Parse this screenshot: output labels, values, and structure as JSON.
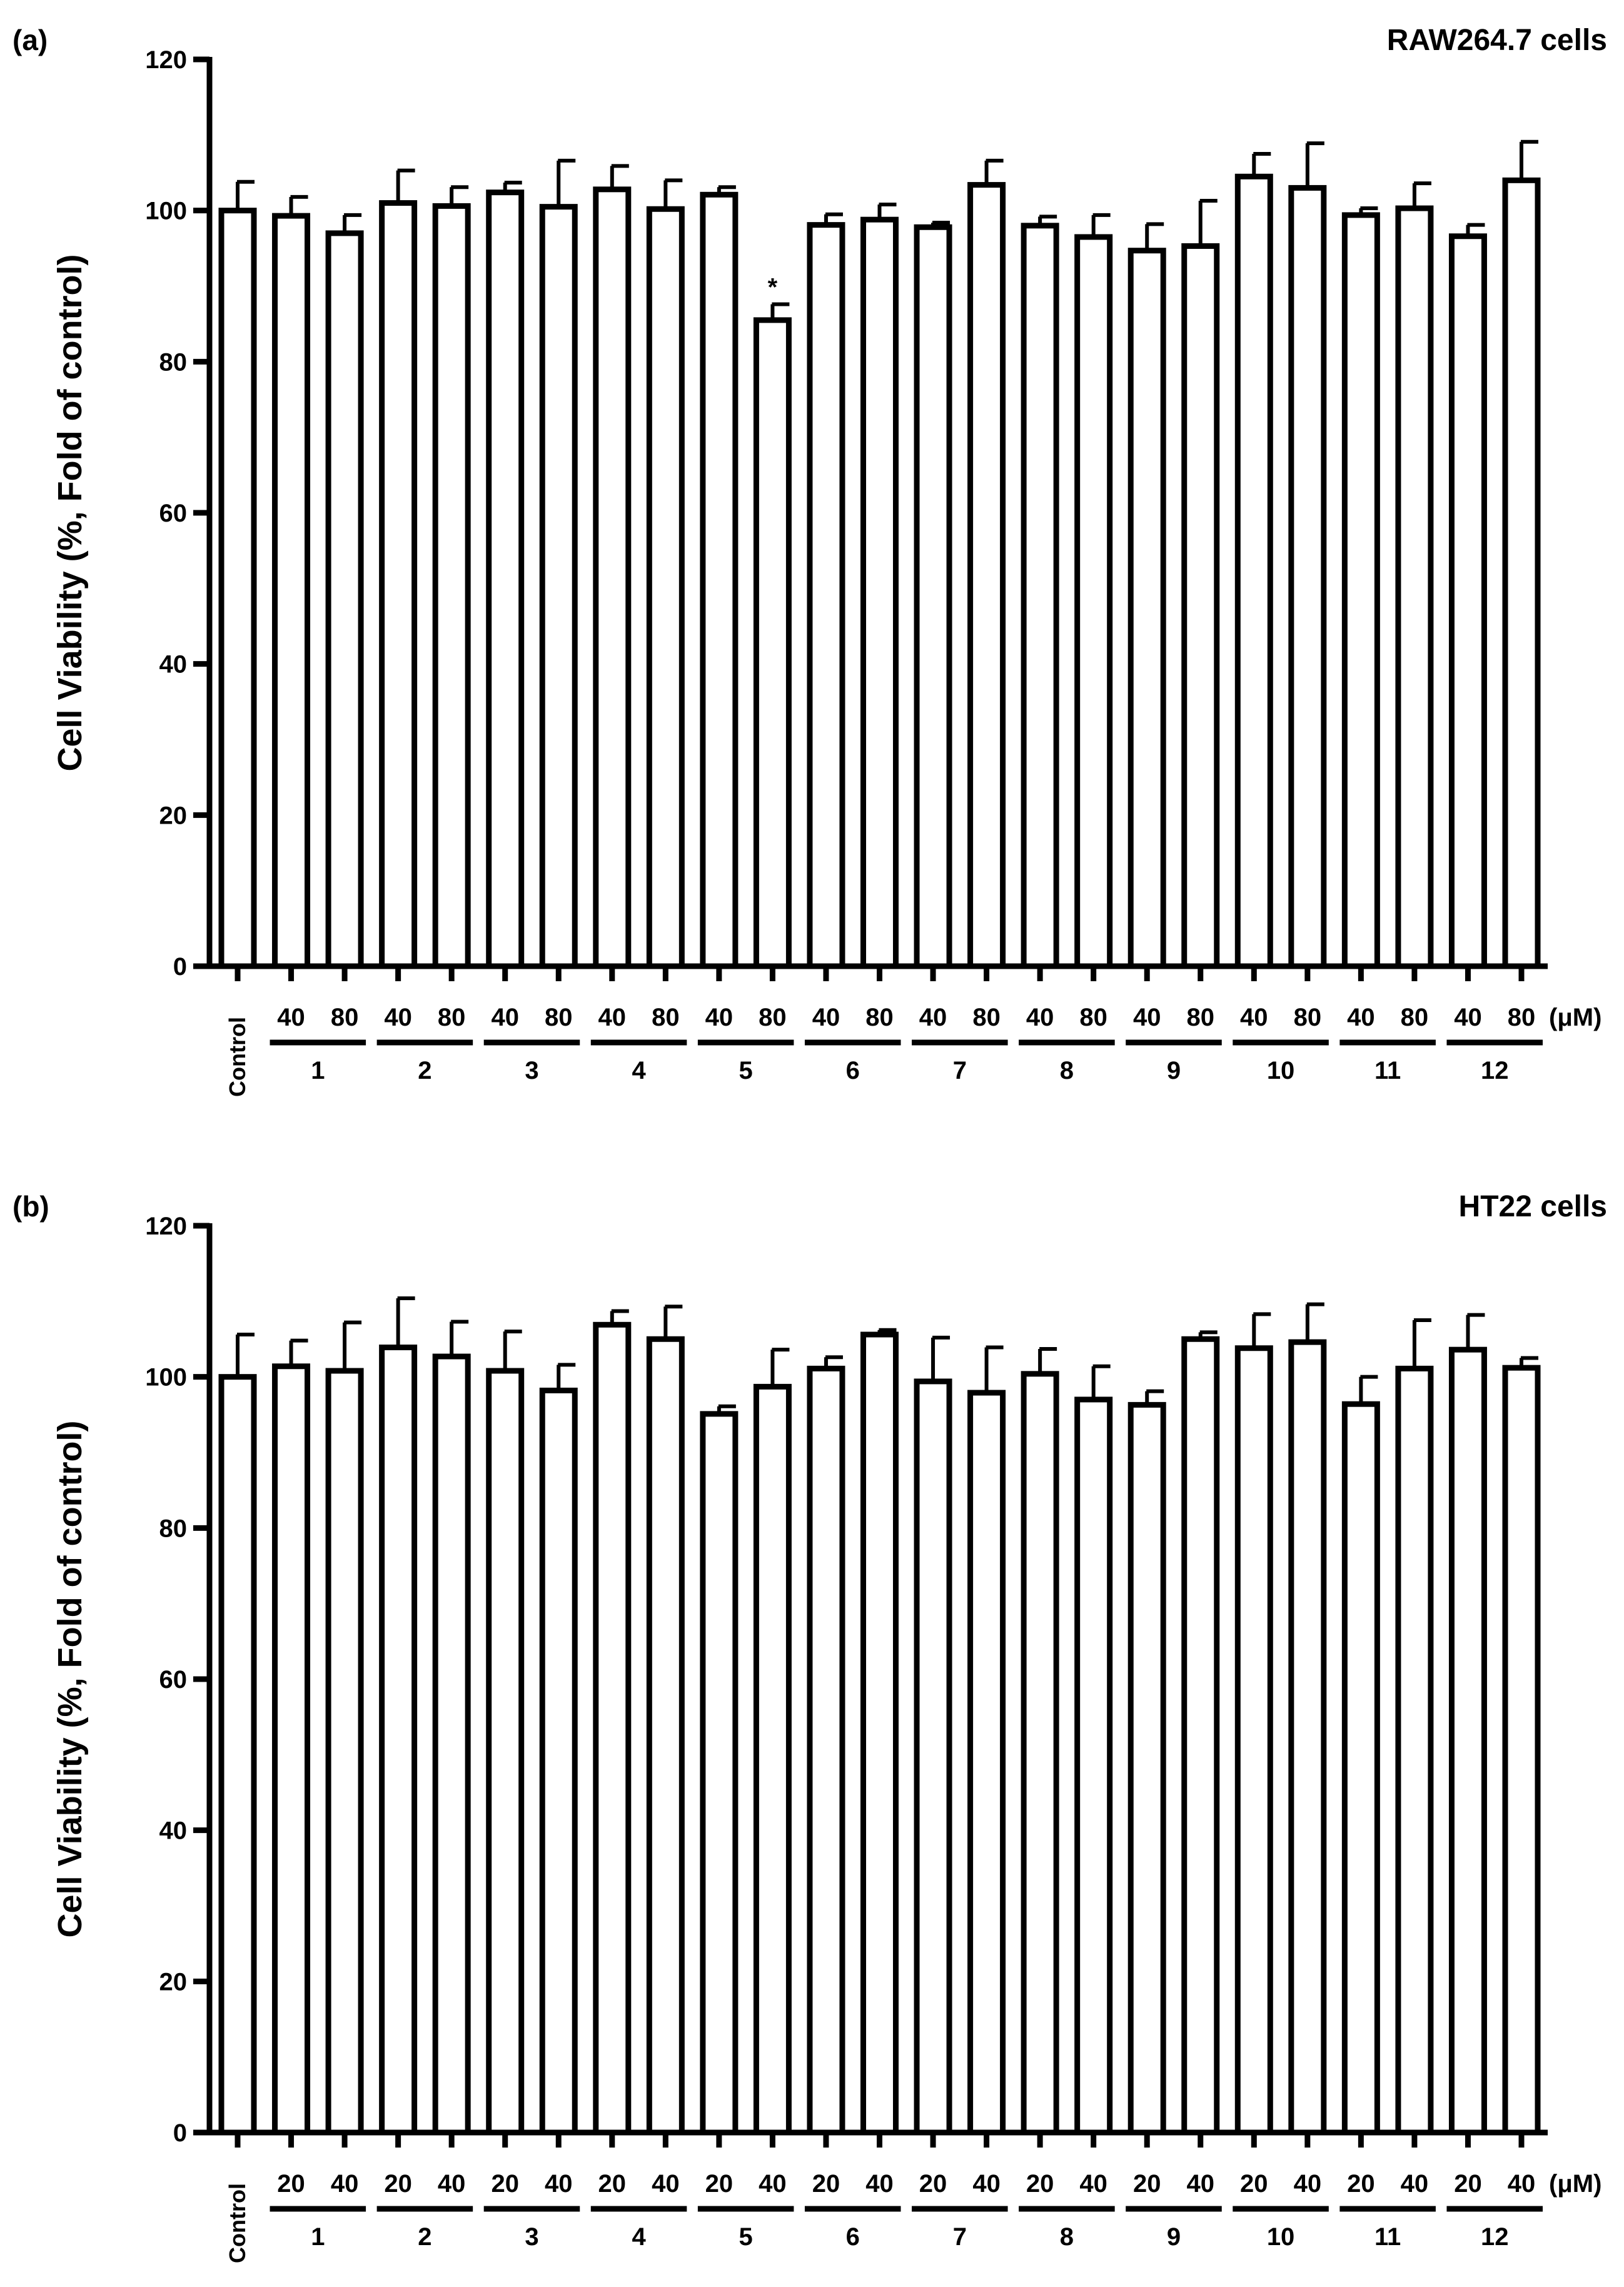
{
  "chart_data": [
    {
      "type": "bar",
      "panel_label": "(a)",
      "title": "RAW264.7 cells",
      "ylabel": "Cell Viability (%, Fold of control)",
      "ylim": [
        0,
        120
      ],
      "yticks": [
        0,
        20,
        40,
        60,
        80,
        100,
        120
      ],
      "unit_label": "(μM)",
      "control_label": "Control",
      "control": {
        "value": 100.0,
        "error": 3.8
      },
      "groups": [
        {
          "label": "1",
          "bars": [
            {
              "dose": "40",
              "value": 99.3,
              "error": 2.5
            },
            {
              "dose": "80",
              "value": 97.0,
              "error": 2.4
            }
          ]
        },
        {
          "label": "2",
          "bars": [
            {
              "dose": "40",
              "value": 101.0,
              "error": 4.3
            },
            {
              "dose": "80",
              "value": 100.6,
              "error": 2.5
            }
          ]
        },
        {
          "label": "3",
          "bars": [
            {
              "dose": "40",
              "value": 102.4,
              "error": 1.3
            },
            {
              "dose": "80",
              "value": 100.5,
              "error": 6.1
            }
          ]
        },
        {
          "label": "4",
          "bars": [
            {
              "dose": "40",
              "value": 102.8,
              "error": 3.1
            },
            {
              "dose": "80",
              "value": 100.2,
              "error": 3.8
            }
          ]
        },
        {
          "label": "5",
          "bars": [
            {
              "dose": "40",
              "value": 102.1,
              "error": 1.0
            },
            {
              "dose": "80",
              "value": 85.5,
              "error": 2.1,
              "annotation": "*"
            }
          ]
        },
        {
          "label": "6",
          "bars": [
            {
              "dose": "40",
              "value": 98.1,
              "error": 1.4
            },
            {
              "dose": "80",
              "value": 98.8,
              "error": 2.0
            }
          ]
        },
        {
          "label": "7",
          "bars": [
            {
              "dose": "40",
              "value": 97.8,
              "error": 0.6
            },
            {
              "dose": "80",
              "value": 103.4,
              "error": 3.2
            }
          ]
        },
        {
          "label": "8",
          "bars": [
            {
              "dose": "40",
              "value": 98.0,
              "error": 1.2
            },
            {
              "dose": "80",
              "value": 96.5,
              "error": 2.9
            }
          ]
        },
        {
          "label": "9",
          "bars": [
            {
              "dose": "40",
              "value": 94.7,
              "error": 3.5
            },
            {
              "dose": "80",
              "value": 95.3,
              "error": 6.0
            }
          ]
        },
        {
          "label": "10",
          "bars": [
            {
              "dose": "40",
              "value": 104.5,
              "error": 3.0
            },
            {
              "dose": "80",
              "value": 103.0,
              "error": 5.9
            }
          ]
        },
        {
          "label": "11",
          "bars": [
            {
              "dose": "40",
              "value": 99.4,
              "error": 0.9
            },
            {
              "dose": "80",
              "value": 100.3,
              "error": 3.3
            }
          ]
        },
        {
          "label": "12",
          "bars": [
            {
              "dose": "40",
              "value": 96.6,
              "error": 1.5
            },
            {
              "dose": "80",
              "value": 104.0,
              "error": 5.1
            }
          ]
        }
      ]
    },
    {
      "type": "bar",
      "panel_label": "(b)",
      "title": "HT22 cells",
      "ylabel": "Cell Viability (%, Fold of control)",
      "ylim": [
        0,
        120
      ],
      "yticks": [
        0,
        20,
        40,
        60,
        80,
        100,
        120
      ],
      "unit_label": "(μM)",
      "control_label": "Control",
      "control": {
        "value": 100.0,
        "error": 5.6
      },
      "groups": [
        {
          "label": "1",
          "bars": [
            {
              "dose": "20",
              "value": 101.4,
              "error": 3.4
            },
            {
              "dose": "40",
              "value": 100.8,
              "error": 6.4
            }
          ]
        },
        {
          "label": "2",
          "bars": [
            {
              "dose": "20",
              "value": 103.9,
              "error": 6.5
            },
            {
              "dose": "40",
              "value": 102.7,
              "error": 4.6
            }
          ]
        },
        {
          "label": "3",
          "bars": [
            {
              "dose": "20",
              "value": 100.8,
              "error": 5.2
            },
            {
              "dose": "40",
              "value": 98.2,
              "error": 3.4
            }
          ]
        },
        {
          "label": "4",
          "bars": [
            {
              "dose": "20",
              "value": 106.9,
              "error": 1.8
            },
            {
              "dose": "40",
              "value": 105.0,
              "error": 4.3
            }
          ]
        },
        {
          "label": "5",
          "bars": [
            {
              "dose": "20",
              "value": 95.1,
              "error": 1.0
            },
            {
              "dose": "40",
              "value": 98.7,
              "error": 4.9
            }
          ]
        },
        {
          "label": "6",
          "bars": [
            {
              "dose": "20",
              "value": 101.1,
              "error": 1.5
            },
            {
              "dose": "40",
              "value": 105.6,
              "error": 0.6
            }
          ]
        },
        {
          "label": "7",
          "bars": [
            {
              "dose": "20",
              "value": 99.4,
              "error": 5.8
            },
            {
              "dose": "40",
              "value": 97.9,
              "error": 6.0
            }
          ]
        },
        {
          "label": "8",
          "bars": [
            {
              "dose": "20",
              "value": 100.4,
              "error": 3.3
            },
            {
              "dose": "40",
              "value": 97.0,
              "error": 4.4
            }
          ]
        },
        {
          "label": "9",
          "bars": [
            {
              "dose": "20",
              "value": 96.3,
              "error": 1.8
            },
            {
              "dose": "40",
              "value": 105.0,
              "error": 0.9
            }
          ]
        },
        {
          "label": "10",
          "bars": [
            {
              "dose": "20",
              "value": 103.8,
              "error": 4.5
            },
            {
              "dose": "40",
              "value": 104.6,
              "error": 5.0
            }
          ]
        },
        {
          "label": "11",
          "bars": [
            {
              "dose": "20",
              "value": 96.4,
              "error": 3.6
            },
            {
              "dose": "40",
              "value": 101.1,
              "error": 6.4
            }
          ]
        },
        {
          "label": "12",
          "bars": [
            {
              "dose": "20",
              "value": 103.6,
              "error": 4.6
            },
            {
              "dose": "40",
              "value": 101.2,
              "error": 1.3
            }
          ]
        }
      ]
    }
  ]
}
